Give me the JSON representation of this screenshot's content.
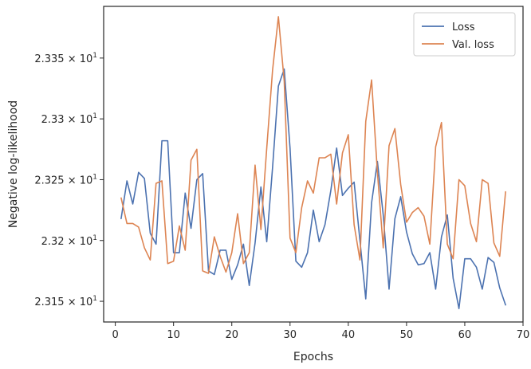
{
  "chart_data": {
    "type": "line",
    "title": "",
    "xlabel": "Epochs",
    "ylabel": "Negative log-likelihood",
    "xlim": [
      -2,
      70
    ],
    "ylim": [
      23.133,
      23.3925
    ],
    "x_ticks": [
      0,
      10,
      20,
      30,
      40,
      50,
      60,
      70
    ],
    "y_ticks": [
      {
        "value": 23.15,
        "mantissa": "2.315",
        "exponent": "1"
      },
      {
        "value": 23.2,
        "mantissa": "2.32",
        "exponent": "1"
      },
      {
        "value": 23.25,
        "mantissa": "2.325",
        "exponent": "1"
      },
      {
        "value": 23.3,
        "mantissa": "2.33",
        "exponent": "1"
      },
      {
        "value": 23.35,
        "mantissa": "2.335",
        "exponent": "1"
      }
    ],
    "grid": false,
    "legend_position": "top-right",
    "x": [
      1,
      2,
      3,
      4,
      5,
      6,
      7,
      8,
      9,
      10,
      11,
      12,
      13,
      14,
      15,
      16,
      17,
      18,
      19,
      20,
      21,
      22,
      23,
      24,
      25,
      26,
      27,
      28,
      29,
      30,
      31,
      32,
      33,
      34,
      35,
      36,
      37,
      38,
      39,
      40,
      41,
      42,
      43,
      44,
      45,
      46,
      47,
      48,
      49,
      50,
      51,
      52,
      53,
      54,
      55,
      56,
      57,
      58,
      59,
      60,
      61,
      62,
      63,
      64,
      65,
      66,
      67
    ],
    "series": [
      {
        "name": "Loss",
        "color": "#4c72b0",
        "values": [
          23.218,
          23.249,
          23.23,
          23.256,
          23.251,
          23.206,
          23.197,
          23.282,
          23.282,
          23.19,
          23.19,
          23.239,
          23.21,
          23.25,
          23.255,
          23.175,
          23.172,
          23.192,
          23.192,
          23.168,
          23.18,
          23.197,
          23.163,
          23.198,
          23.244,
          23.199,
          23.26,
          23.327,
          23.341,
          23.276,
          23.183,
          23.178,
          23.19,
          23.225,
          23.199,
          23.213,
          23.241,
          23.276,
          23.237,
          23.243,
          23.248,
          23.2,
          23.152,
          23.231,
          23.265,
          23.221,
          23.16,
          23.218,
          23.236,
          23.207,
          23.189,
          23.18,
          23.181,
          23.19,
          23.16,
          23.203,
          23.221,
          23.169,
          23.144,
          23.185,
          23.185,
          23.178,
          23.16,
          23.186,
          23.182,
          23.161,
          23.147
        ]
      },
      {
        "name": "Val. loss",
        "color": "#dd8452",
        "values": [
          23.235,
          23.214,
          23.214,
          23.211,
          23.194,
          23.184,
          23.247,
          23.249,
          23.181,
          23.183,
          23.212,
          23.192,
          23.266,
          23.275,
          23.175,
          23.173,
          23.203,
          23.187,
          23.174,
          23.19,
          23.222,
          23.181,
          23.19,
          23.262,
          23.209,
          23.276,
          23.34,
          23.384,
          23.331,
          23.202,
          23.19,
          23.227,
          23.249,
          23.239,
          23.268,
          23.268,
          23.271,
          23.23,
          23.272,
          23.287,
          23.213,
          23.184,
          23.298,
          23.332,
          23.256,
          23.194,
          23.278,
          23.292,
          23.246,
          23.215,
          23.223,
          23.227,
          23.22,
          23.197,
          23.277,
          23.297,
          23.197,
          23.185,
          23.25,
          23.245,
          23.214,
          23.199,
          23.25,
          23.247,
          23.198,
          23.187,
          23.24
        ]
      }
    ]
  }
}
